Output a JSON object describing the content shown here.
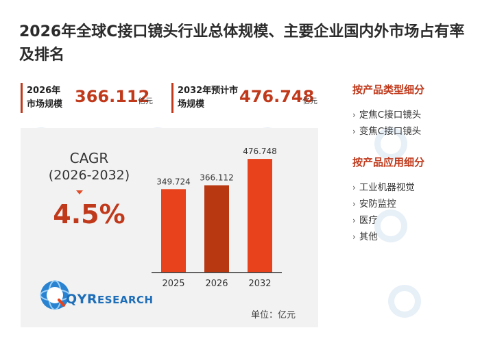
{
  "title": "2026年全球C接口镜头行业总体规模、主要企业国内外市场占有率及排名",
  "kpis": [
    {
      "label": "2026年市场规模",
      "value": "366.112",
      "unit": "亿元"
    },
    {
      "label": "2032年预计市场规模",
      "value": "476.748",
      "unit": "亿元"
    }
  ],
  "cagr": {
    "label": "CAGR",
    "period": "(2026-2032)",
    "value": "4.5%"
  },
  "logo": {
    "q": "Q",
    "yr": "YR",
    "esearch": "ESEARCH"
  },
  "unit_note": "单位：亿元",
  "side": {
    "type_heading": "按产品类型细分",
    "type_items": [
      "定焦C接口镜头",
      "变焦C接口镜头"
    ],
    "app_heading": "按产品应用细分",
    "app_items": [
      "工业机器视觉",
      "安防监控",
      "医疗",
      "其他"
    ]
  },
  "colors": {
    "accent": "#c0391b",
    "bar": "#e8421c",
    "bar_highlight": "#b83812",
    "logo_blue": "#1e6eb8"
  },
  "chart_data": {
    "type": "bar",
    "categories": [
      "2025",
      "2026",
      "2032"
    ],
    "values": [
      349.724,
      366.112,
      476.748
    ],
    "value_labels": [
      "349.724",
      "366.112",
      "476.748"
    ],
    "highlight_index": 1,
    "unit": "亿元",
    "ylim": [
      0,
      520
    ],
    "grid": false,
    "legend": "none",
    "xlabel": "",
    "ylabel": ""
  }
}
